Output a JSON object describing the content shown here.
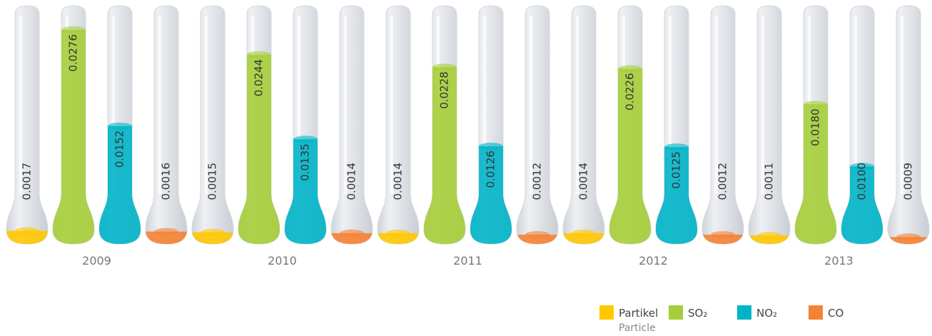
{
  "chart_data": {
    "type": "tube-bar",
    "categories": [
      "2009",
      "2010",
      "2011",
      "2012",
      "2013"
    ],
    "series": [
      {
        "name": "Partikel",
        "translation": "Particle",
        "color": "#ffc800",
        "values": [
          0.0017,
          0.0015,
          0.0014,
          0.0014,
          0.0011
        ],
        "value_labels": [
          "0.0017",
          "0.0015",
          "0.0014",
          "0.0014",
          "0.0011"
        ]
      },
      {
        "name": "SO₂",
        "color": "#a6ce39",
        "values": [
          0.0276,
          0.0244,
          0.0228,
          0.0226,
          0.018
        ],
        "value_labels": [
          "0.0276",
          "0.0244",
          "0.0228",
          "0.0226",
          "0.0180"
        ]
      },
      {
        "name": "NO₂",
        "color": "#00b5c8",
        "values": [
          0.0152,
          0.0135,
          0.0126,
          0.0125,
          0.01
        ],
        "value_labels": [
          "0.0152",
          "0.0135",
          "0.0126",
          "0.0125",
          "0.0100"
        ]
      },
      {
        "name": "CO",
        "color": "#f58233",
        "values": [
          0.0016,
          0.0014,
          0.0012,
          0.0012,
          0.0009
        ],
        "value_labels": [
          "0.0016",
          "0.0014",
          "0.0012",
          "0.0012",
          "0.0009"
        ]
      }
    ]
  }
}
